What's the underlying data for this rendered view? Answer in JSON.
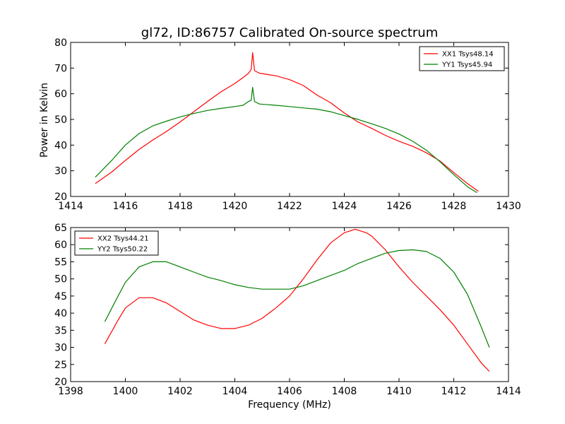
{
  "chart_data": [
    {
      "type": "line",
      "title": "gl72, ID:86757 Calibrated On-source spectrum",
      "xlabel": "",
      "ylabel": "Power in Kelvin",
      "xlim": [
        1414,
        1430
      ],
      "ylim": [
        20,
        80
      ],
      "xticks": [
        1414,
        1416,
        1418,
        1420,
        1422,
        1424,
        1426,
        1428,
        1430
      ],
      "yticks": [
        20,
        30,
        40,
        50,
        60,
        70,
        80
      ],
      "grid": false,
      "legend_position": "top-right",
      "series": [
        {
          "name": "XX1 Tsys48.14",
          "color": "#ff0000",
          "points": [
            [
              1414.9,
              25.0
            ],
            [
              1415.5,
              29.5
            ],
            [
              1416.0,
              34.0
            ],
            [
              1416.5,
              38.3
            ],
            [
              1417.0,
              42.0
            ],
            [
              1417.5,
              45.3
            ],
            [
              1418.0,
              49.0
            ],
            [
              1418.5,
              53.0
            ],
            [
              1419.0,
              57.0
            ],
            [
              1419.5,
              60.8
            ],
            [
              1420.0,
              64.0
            ],
            [
              1420.3,
              66.3
            ],
            [
              1420.5,
              68.0
            ],
            [
              1420.6,
              69.5
            ],
            [
              1420.65,
              76.0
            ],
            [
              1420.72,
              69.0
            ],
            [
              1420.9,
              68.0
            ],
            [
              1421.2,
              67.5
            ],
            [
              1421.5,
              67.0
            ],
            [
              1422.0,
              65.5
            ],
            [
              1422.5,
              63.2
            ],
            [
              1423.0,
              59.5
            ],
            [
              1423.5,
              56.5
            ],
            [
              1424.0,
              52.5
            ],
            [
              1424.5,
              49.0
            ],
            [
              1425.0,
              46.5
            ],
            [
              1425.5,
              43.8
            ],
            [
              1426.0,
              41.5
            ],
            [
              1426.5,
              39.5
            ],
            [
              1427.0,
              37.0
            ],
            [
              1427.5,
              33.8
            ],
            [
              1428.0,
              29.3
            ],
            [
              1428.5,
              25.0
            ],
            [
              1428.9,
              22.0
            ]
          ]
        },
        {
          "name": "YY1 Tsys45.94",
          "color": "#008000",
          "points": [
            [
              1414.9,
              27.5
            ],
            [
              1415.5,
              34.0
            ],
            [
              1416.0,
              40.0
            ],
            [
              1416.5,
              44.5
            ],
            [
              1417.0,
              47.5
            ],
            [
              1417.5,
              49.3
            ],
            [
              1418.0,
              51.0
            ],
            [
              1418.5,
              52.3
            ],
            [
              1419.0,
              53.5
            ],
            [
              1419.5,
              54.3
            ],
            [
              1420.0,
              55.0
            ],
            [
              1420.3,
              55.5
            ],
            [
              1420.5,
              57.0
            ],
            [
              1420.6,
              57.5
            ],
            [
              1420.65,
              62.5
            ],
            [
              1420.72,
              57.0
            ],
            [
              1420.9,
              56.0
            ],
            [
              1421.5,
              55.5
            ],
            [
              1422.0,
              55.0
            ],
            [
              1422.5,
              54.5
            ],
            [
              1423.0,
              54.0
            ],
            [
              1423.5,
              53.0
            ],
            [
              1424.0,
              51.5
            ],
            [
              1424.5,
              50.0
            ],
            [
              1425.0,
              48.3
            ],
            [
              1425.5,
              46.5
            ],
            [
              1426.0,
              44.3
            ],
            [
              1426.5,
              41.5
            ],
            [
              1427.0,
              38.0
            ],
            [
              1427.5,
              33.5
            ],
            [
              1428.0,
              28.5
            ],
            [
              1428.5,
              23.8
            ],
            [
              1428.85,
              21.5
            ]
          ]
        }
      ]
    },
    {
      "type": "line",
      "title": "",
      "xlabel": "Frequency (MHz)",
      "ylabel": "",
      "xlim": [
        1398,
        1414
      ],
      "ylim": [
        20,
        65
      ],
      "xticks": [
        1398,
        1400,
        1402,
        1404,
        1406,
        1408,
        1410,
        1412,
        1414
      ],
      "yticks": [
        20,
        25,
        30,
        35,
        40,
        45,
        50,
        55,
        60,
        65
      ],
      "grid": false,
      "legend_position": "top-left",
      "series": [
        {
          "name": "XX2 Tsys44.21",
          "color": "#ff0000",
          "points": [
            [
              1399.25,
              31.0
            ],
            [
              1399.7,
              37.5
            ],
            [
              1400.0,
              41.5
            ],
            [
              1400.5,
              44.5
            ],
            [
              1401.0,
              44.5
            ],
            [
              1401.5,
              43.0
            ],
            [
              1402.0,
              40.5
            ],
            [
              1402.5,
              38.0
            ],
            [
              1403.0,
              36.5
            ],
            [
              1403.5,
              35.5
            ],
            [
              1404.0,
              35.5
            ],
            [
              1404.5,
              36.5
            ],
            [
              1405.0,
              38.5
            ],
            [
              1405.5,
              41.5
            ],
            [
              1406.0,
              45.0
            ],
            [
              1406.5,
              50.0
            ],
            [
              1407.0,
              55.5
            ],
            [
              1407.5,
              60.5
            ],
            [
              1408.0,
              63.5
            ],
            [
              1408.4,
              64.5
            ],
            [
              1408.8,
              63.5
            ],
            [
              1409.0,
              62.5
            ],
            [
              1409.5,
              58.5
            ],
            [
              1410.0,
              53.5
            ],
            [
              1410.5,
              49.0
            ],
            [
              1411.0,
              45.0
            ],
            [
              1411.5,
              41.0
            ],
            [
              1412.0,
              36.5
            ],
            [
              1412.5,
              31.0
            ],
            [
              1413.0,
              25.5
            ],
            [
              1413.3,
              23.0
            ]
          ]
        },
        {
          "name": "YY2 Tsys50.22",
          "color": "#008000",
          "points": [
            [
              1399.25,
              37.5
            ],
            [
              1399.7,
              44.5
            ],
            [
              1400.0,
              49.0
            ],
            [
              1400.5,
              53.5
            ],
            [
              1401.0,
              55.0
            ],
            [
              1401.5,
              55.0
            ],
            [
              1402.0,
              53.5
            ],
            [
              1402.5,
              52.0
            ],
            [
              1403.0,
              50.5
            ],
            [
              1403.5,
              49.5
            ],
            [
              1404.0,
              48.3
            ],
            [
              1404.5,
              47.5
            ],
            [
              1405.0,
              47.0
            ],
            [
              1405.5,
              47.0
            ],
            [
              1406.0,
              47.0
            ],
            [
              1406.5,
              48.0
            ],
            [
              1407.0,
              49.5
            ],
            [
              1407.5,
              51.0
            ],
            [
              1408.0,
              52.5
            ],
            [
              1408.5,
              54.5
            ],
            [
              1409.0,
              56.0
            ],
            [
              1409.5,
              57.5
            ],
            [
              1410.0,
              58.3
            ],
            [
              1410.5,
              58.5
            ],
            [
              1411.0,
              58.0
            ],
            [
              1411.5,
              56.0
            ],
            [
              1412.0,
              52.0
            ],
            [
              1412.5,
              45.5
            ],
            [
              1413.0,
              36.0
            ],
            [
              1413.3,
              30.0
            ]
          ]
        }
      ]
    }
  ]
}
